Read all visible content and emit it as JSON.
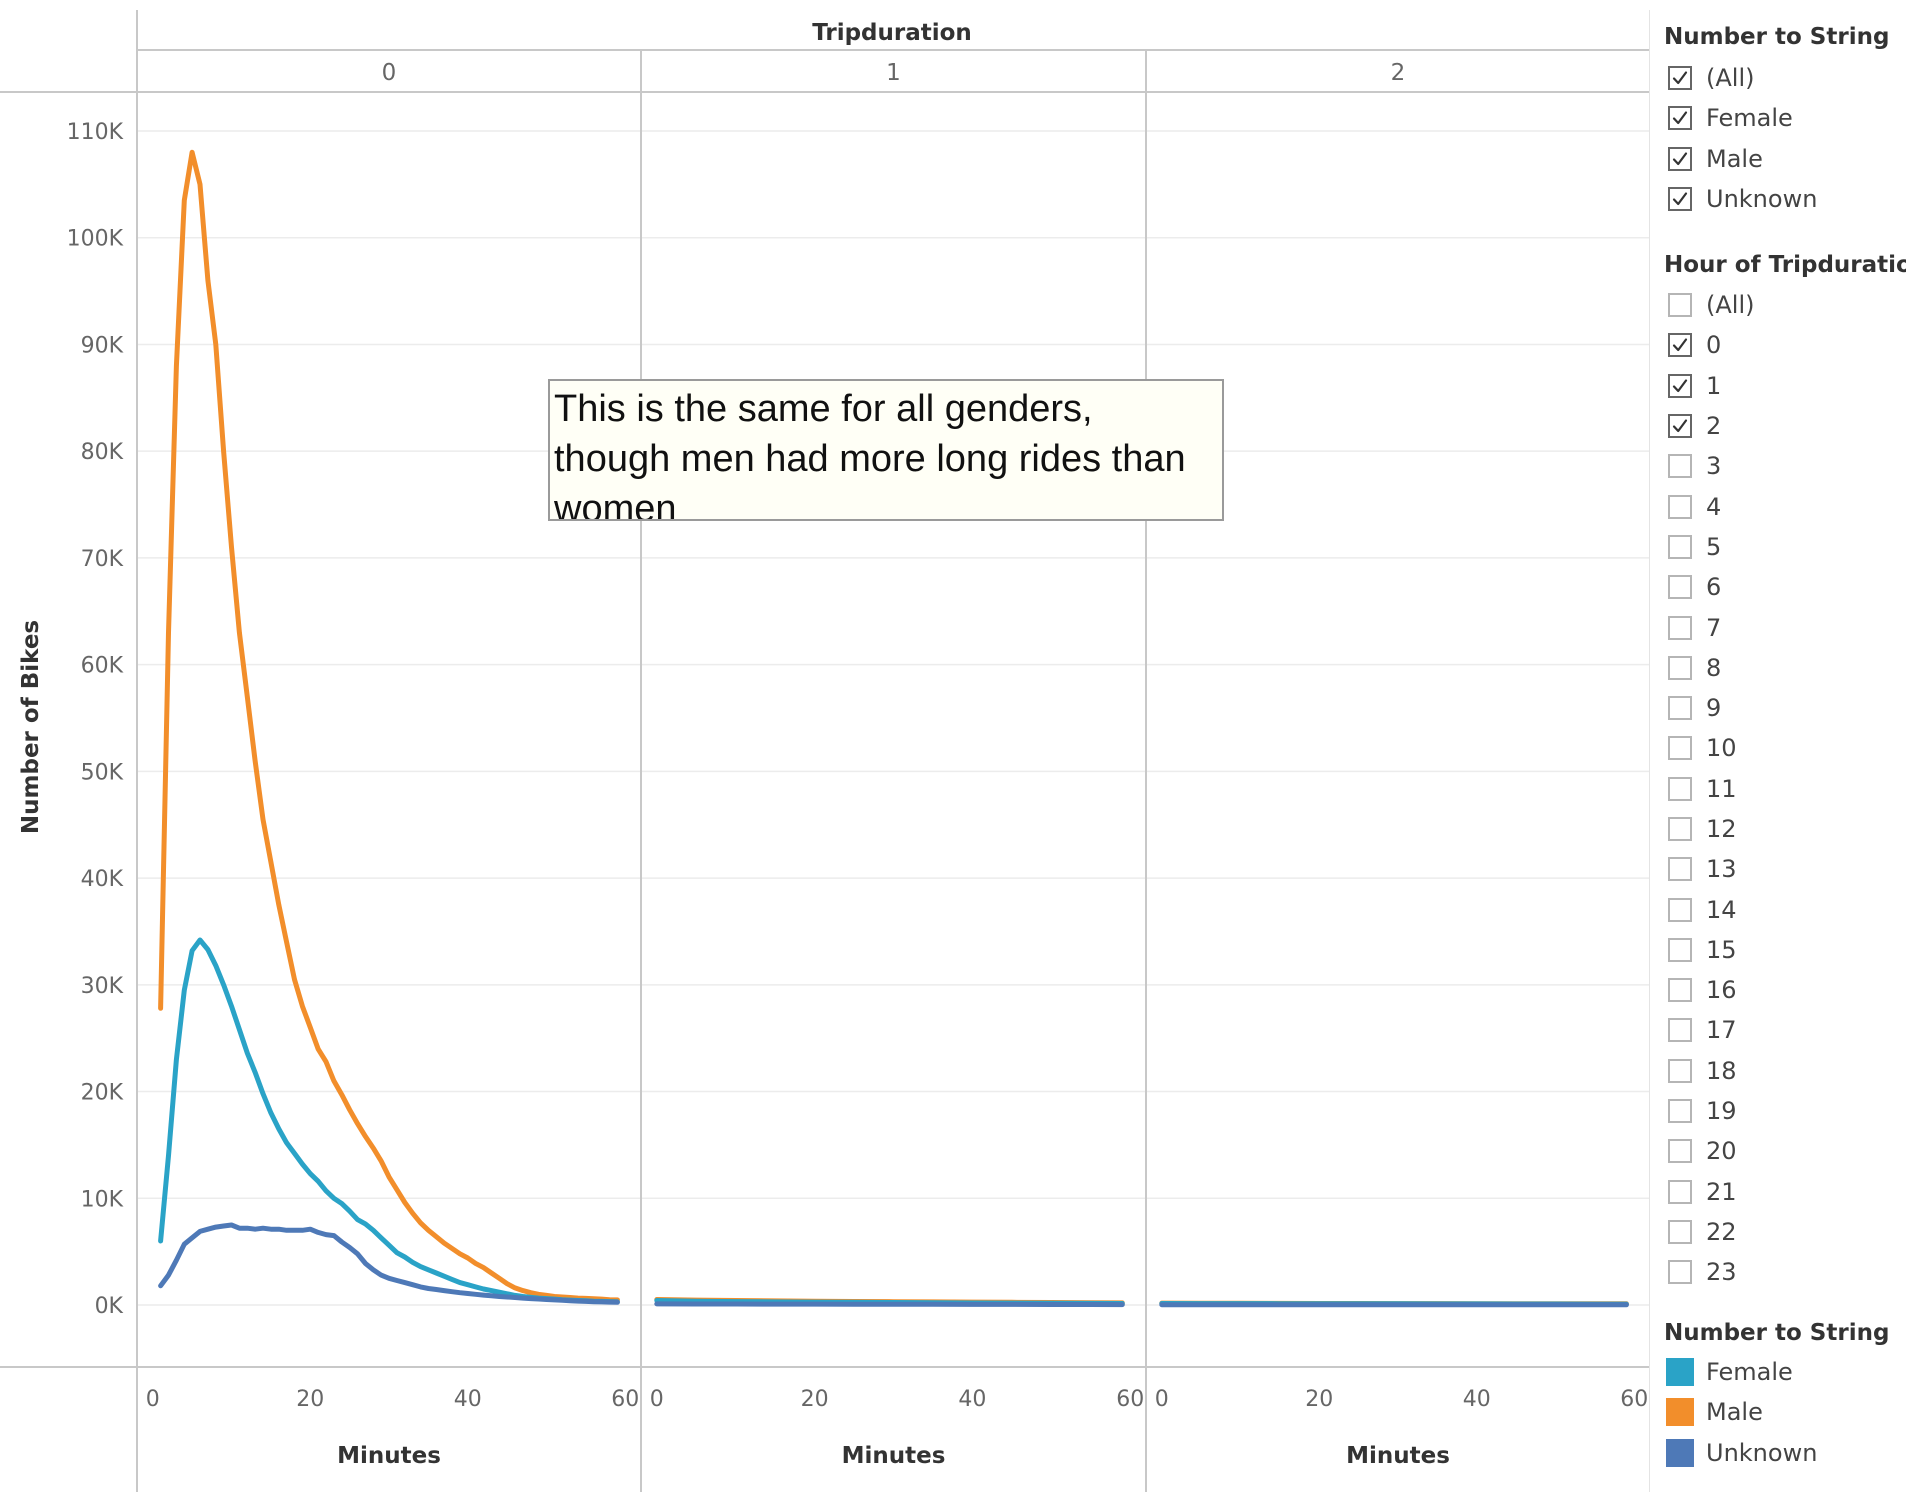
{
  "chart_data": {
    "type": "line",
    "column_header": "Tripduration",
    "panels": [
      {
        "label": "0",
        "xlabel": "Minutes"
      },
      {
        "label": "1",
        "xlabel": "Minutes"
      },
      {
        "label": "2",
        "xlabel": "Minutes"
      }
    ],
    "ylabel": "Number of Bikes",
    "ylim": [
      0,
      110000
    ],
    "yticks": [
      {
        "value": 0,
        "label": "0K"
      },
      {
        "value": 10000,
        "label": "10K"
      },
      {
        "value": 20000,
        "label": "20K"
      },
      {
        "value": 30000,
        "label": "30K"
      },
      {
        "value": 40000,
        "label": "40K"
      },
      {
        "value": 50000,
        "label": "50K"
      },
      {
        "value": 60000,
        "label": "60K"
      },
      {
        "value": 70000,
        "label": "70K"
      },
      {
        "value": 80000,
        "label": "80K"
      },
      {
        "value": 90000,
        "label": "90K"
      },
      {
        "value": 100000,
        "label": "100K"
      },
      {
        "value": 110000,
        "label": "110K"
      }
    ],
    "xlim": [
      -2,
      62
    ],
    "xticks": [
      0,
      20,
      40,
      60
    ],
    "grid": true,
    "series": [
      {
        "name": "Male",
        "color": "#f28e2b",
        "panels": [
          {
            "x": [
              1,
              2,
              3,
              4,
              5,
              6,
              7,
              8,
              9,
              10,
              11,
              12,
              13,
              14,
              15,
              16,
              17,
              18,
              19,
              20,
              21,
              22,
              23,
              24,
              25,
              26,
              27,
              28,
              29,
              30,
              31,
              32,
              33,
              34,
              35,
              36,
              37,
              38,
              39,
              40,
              41,
              42,
              43,
              44,
              45,
              46,
              47,
              48,
              49,
              50,
              51,
              52,
              53,
              54,
              55,
              56,
              57,
              58,
              59
            ],
            "y": [
              27800,
              63000,
              88000,
              103500,
              108000,
              105000,
              96000,
              90000,
              80000,
              71000,
              63000,
              57000,
              51000,
              45500,
              41500,
              37500,
              34000,
              30500,
              28000,
              26000,
              24000,
              22800,
              21000,
              19700,
              18300,
              17000,
              15800,
              14700,
              13500,
              12000,
              10800,
              9600,
              8600,
              7700,
              7000,
              6400,
              5800,
              5300,
              4800,
              4400,
              3900,
              3500,
              3000,
              2500,
              2000,
              1600,
              1350,
              1150,
              1000,
              900,
              800,
              750,
              700,
              650,
              620,
              580,
              550,
              500,
              480
            ]
          },
          {
            "x": [
              0,
              5,
              10,
              15,
              20,
              25,
              30,
              35,
              40,
              45,
              50,
              55,
              59
            ],
            "y": [
              520,
              460,
              420,
              380,
              350,
              330,
              310,
              290,
              270,
              250,
              230,
              210,
              200
            ]
          },
          {
            "x": [
              0,
              5,
              10,
              15,
              20,
              25,
              30,
              35,
              40,
              45,
              50,
              55,
              59
            ],
            "y": [
              180,
              170,
              160,
              150,
              145,
              140,
              135,
              130,
              125,
              120,
              115,
              110,
              110
            ]
          }
        ]
      },
      {
        "name": "Female",
        "color": "#2aa3c7",
        "panels": [
          {
            "x": [
              1,
              2,
              3,
              4,
              5,
              6,
              7,
              8,
              9,
              10,
              11,
              12,
              13,
              14,
              15,
              16,
              17,
              18,
              19,
              20,
              21,
              22,
              23,
              24,
              25,
              26,
              27,
              28,
              29,
              30,
              31,
              32,
              33,
              34,
              35,
              36,
              37,
              38,
              39,
              40,
              41,
              42,
              43,
              44,
              45,
              46,
              47,
              48,
              49,
              50,
              51,
              52,
              53,
              54,
              55,
              56,
              57,
              58,
              59
            ],
            "y": [
              6000,
              14000,
              23000,
              29500,
              33200,
              34200,
              33300,
              31800,
              30000,
              28000,
              25800,
              23600,
              21800,
              19800,
              18000,
              16500,
              15200,
              14200,
              13200,
              12300,
              11600,
              10700,
              10000,
              9500,
              8800,
              8000,
              7600,
              7000,
              6300,
              5600,
              4900,
              4500,
              4000,
              3600,
              3300,
              3000,
              2700,
              2400,
              2100,
              1900,
              1700,
              1500,
              1350,
              1200,
              1050,
              900,
              800,
              720,
              650,
              600,
              550,
              500,
              460,
              420,
              390,
              360,
              340,
              320,
              300
            ]
          },
          {
            "x": [
              0,
              5,
              10,
              15,
              20,
              25,
              30,
              35,
              40,
              45,
              50,
              55,
              59
            ],
            "y": [
              420,
              360,
              320,
              290,
              270,
              250,
              230,
              210,
              190,
              175,
              160,
              150,
              140
            ]
          },
          {
            "x": [
              0,
              5,
              10,
              15,
              20,
              25,
              30,
              35,
              40,
              45,
              50,
              55,
              59
            ],
            "y": [
              140,
              135,
              130,
              125,
              120,
              115,
              110,
              105,
              100,
              95,
              90,
              85,
              80
            ]
          }
        ]
      },
      {
        "name": "Unknown",
        "color": "#4e79b7",
        "panels": [
          {
            "x": [
              1,
              2,
              3,
              4,
              5,
              6,
              7,
              8,
              9,
              10,
              11,
              12,
              13,
              14,
              15,
              16,
              17,
              18,
              19,
              20,
              21,
              22,
              23,
              24,
              25,
              26,
              27,
              28,
              29,
              30,
              31,
              32,
              33,
              34,
              35,
              36,
              37,
              38,
              39,
              40,
              41,
              42,
              43,
              44,
              45,
              46,
              47,
              48,
              49,
              50,
              51,
              52,
              53,
              54,
              55,
              56,
              57,
              58,
              59
            ],
            "y": [
              1800,
              2800,
              4200,
              5700,
              6300,
              6900,
              7100,
              7300,
              7400,
              7500,
              7200,
              7200,
              7100,
              7200,
              7100,
              7100,
              7000,
              7000,
              7000,
              7100,
              6800,
              6600,
              6500,
              5900,
              5400,
              4800,
              3900,
              3300,
              2800,
              2500,
              2300,
              2100,
              1900,
              1700,
              1550,
              1450,
              1350,
              1250,
              1150,
              1080,
              1000,
              930,
              860,
              800,
              750,
              700,
              650,
              600,
              560,
              520,
              480,
              440,
              400,
              370,
              340,
              310,
              290,
              270,
              250
            ]
          },
          {
            "x": [
              0,
              5,
              10,
              15,
              20,
              25,
              30,
              35,
              40,
              45,
              50,
              55,
              59
            ],
            "y": [
              100,
              95,
              90,
              85,
              80,
              75,
              70,
              65,
              60,
              55,
              50,
              45,
              40
            ]
          },
          {
            "x": [
              0,
              5,
              10,
              15,
              20,
              25,
              30,
              35,
              40,
              45,
              50,
              55,
              59
            ],
            "y": [
              30,
              30,
              28,
              27,
              26,
              25,
              24,
              23,
              22,
              21,
              20,
              20,
              20
            ]
          }
        ]
      }
    ]
  },
  "annotation": {
    "text": "This is the same for all genders, though men had more long rides than women"
  },
  "legend": {
    "number_filter": {
      "title": "Number to String",
      "items": [
        {
          "label": "(All)",
          "checked": true
        },
        {
          "label": "Female",
          "checked": true
        },
        {
          "label": "Male",
          "checked": true
        },
        {
          "label": "Unknown",
          "checked": true
        }
      ]
    },
    "hour_filter": {
      "title": "Hour of Tripduration",
      "items": [
        {
          "label": "(All)",
          "checked": false
        },
        {
          "label": "0",
          "checked": true
        },
        {
          "label": "1",
          "checked": true
        },
        {
          "label": "2",
          "checked": true
        },
        {
          "label": "3",
          "checked": false
        },
        {
          "label": "4",
          "checked": false
        },
        {
          "label": "5",
          "checked": false
        },
        {
          "label": "6",
          "checked": false
        },
        {
          "label": "7",
          "checked": false
        },
        {
          "label": "8",
          "checked": false
        },
        {
          "label": "9",
          "checked": false
        },
        {
          "label": "10",
          "checked": false
        },
        {
          "label": "11",
          "checked": false
        },
        {
          "label": "12",
          "checked": false
        },
        {
          "label": "13",
          "checked": false
        },
        {
          "label": "14",
          "checked": false
        },
        {
          "label": "15",
          "checked": false
        },
        {
          "label": "16",
          "checked": false
        },
        {
          "label": "17",
          "checked": false
        },
        {
          "label": "18",
          "checked": false
        },
        {
          "label": "19",
          "checked": false
        },
        {
          "label": "20",
          "checked": false
        },
        {
          "label": "21",
          "checked": false
        },
        {
          "label": "22",
          "checked": false
        },
        {
          "label": "23",
          "checked": false
        }
      ]
    },
    "color_legend": {
      "title": "Number to String",
      "items": [
        {
          "label": "Female",
          "color": "#2aa3c7"
        },
        {
          "label": "Male",
          "color": "#f28e2b"
        },
        {
          "label": "Unknown",
          "color": "#4e79b7"
        }
      ]
    }
  }
}
